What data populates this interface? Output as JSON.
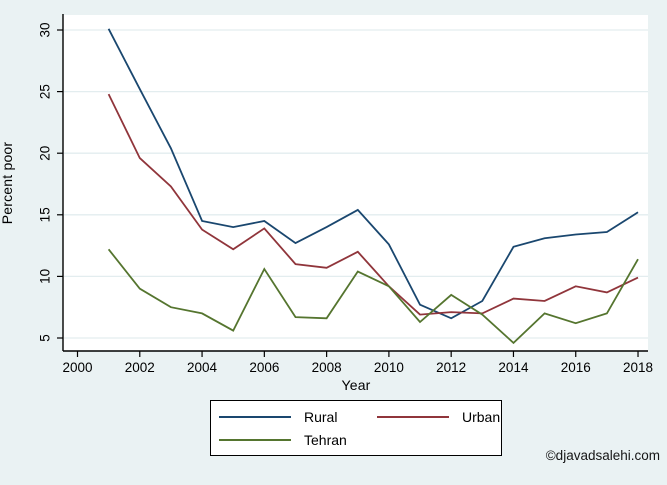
{
  "figure": {
    "watermark": "©djavadsalehi.com"
  },
  "chart_data": {
    "type": "line",
    "title": "",
    "xlabel": "Year",
    "ylabel": "Percent poor",
    "x_ticks": [
      2000,
      2002,
      2004,
      2006,
      2008,
      2010,
      2012,
      2014,
      2016,
      2018
    ],
    "y_ticks": [
      5,
      10,
      15,
      20,
      25,
      30
    ],
    "xlim": [
      1999.55,
      2018.35
    ],
    "ylim": [
      3.8,
      31.2
    ],
    "grid": "horizontal",
    "legend_position": "bottom-center",
    "background_color": "#eaf2f3",
    "plot_background_color": "#ffffff",
    "grid_color": "#e3edef",
    "axis_color": "#000000",
    "x": [
      2001,
      2002,
      2003,
      2004,
      2005,
      2006,
      2007,
      2008,
      2009,
      2010,
      2011,
      2012,
      2013,
      2014,
      2015,
      2016,
      2017,
      2018
    ],
    "series": [
      {
        "name": "Rural",
        "color": "#1a476f",
        "values": [
          30.1,
          25.2,
          20.4,
          14.5,
          14.0,
          14.5,
          12.7,
          14.0,
          15.4,
          12.6,
          7.7,
          6.6,
          8.0,
          12.4,
          13.1,
          13.4,
          13.6,
          15.2
        ]
      },
      {
        "name": "Urban",
        "color": "#90353b",
        "values": [
          24.8,
          19.6,
          17.3,
          13.8,
          12.2,
          13.9,
          11.0,
          10.7,
          12.0,
          9.2,
          6.9,
          7.1,
          7.0,
          8.2,
          8.0,
          9.2,
          8.7,
          9.9
        ]
      },
      {
        "name": "Tehran",
        "color": "#55752f",
        "values": [
          12.2,
          9.0,
          7.5,
          7.0,
          5.6,
          10.6,
          6.7,
          6.6,
          10.4,
          9.2,
          6.3,
          8.5,
          6.9,
          4.6,
          7.0,
          6.2,
          7.0,
          11.4
        ]
      }
    ]
  }
}
